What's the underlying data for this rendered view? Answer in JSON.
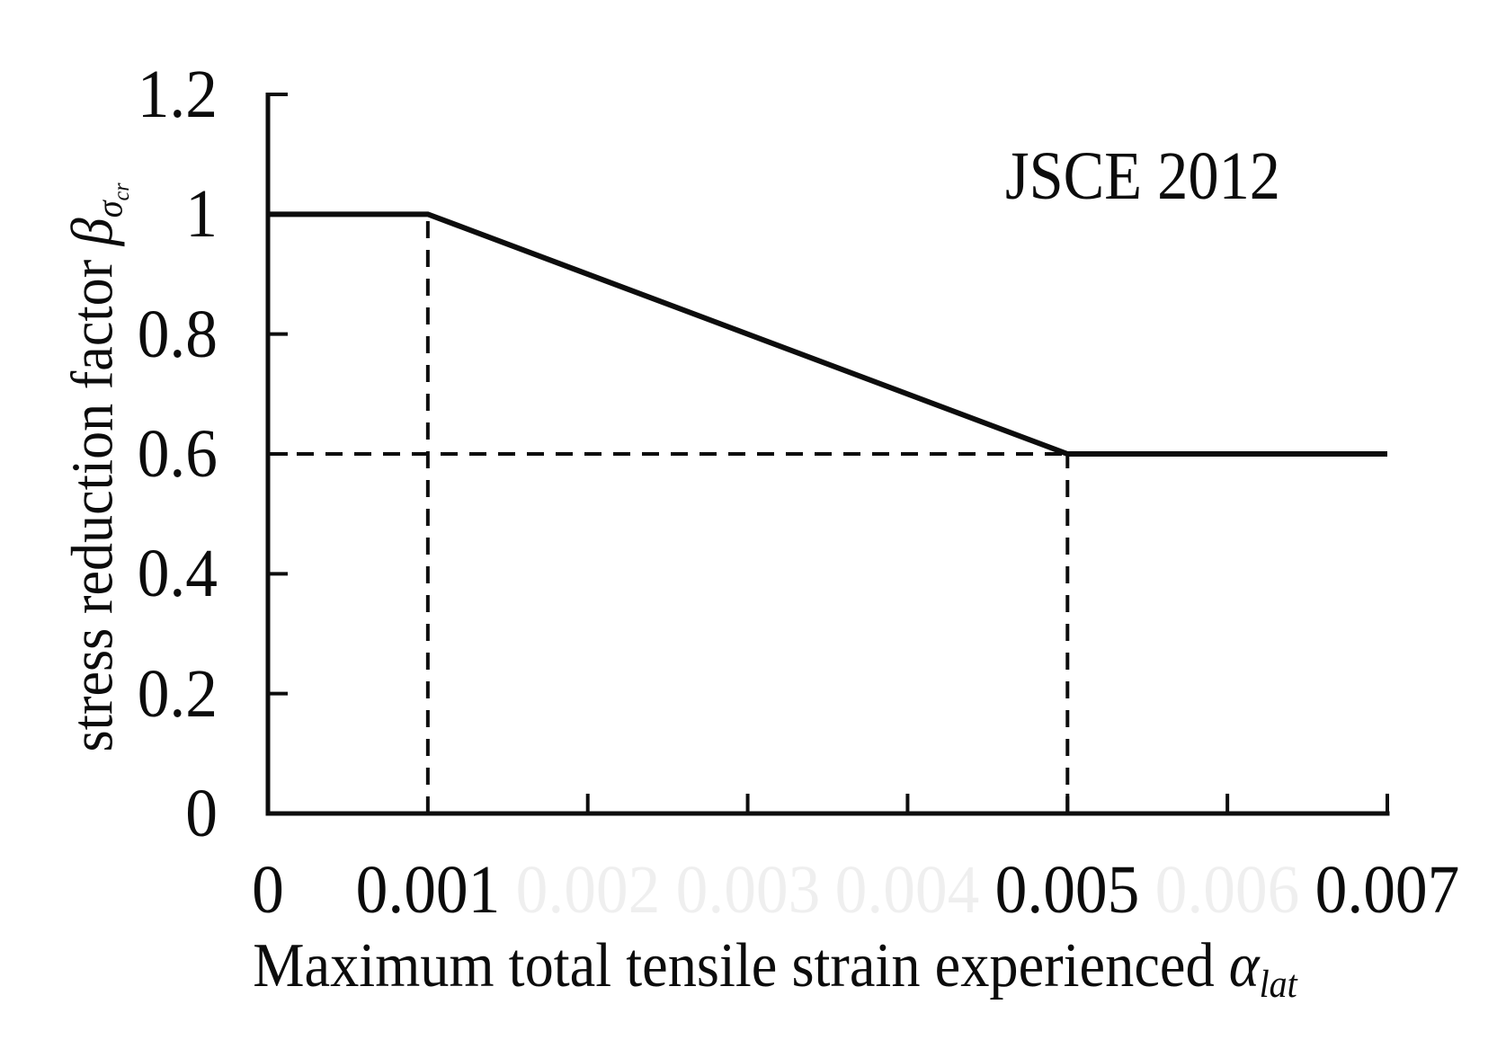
{
  "chart_data": {
    "type": "line",
    "title": "",
    "annotation": "JSCE 2012",
    "xlabel": "Maximum total tensile strain experienced α_lat",
    "xlabel_parts": {
      "main": "Maximum total tensile strain experienced ",
      "symbol": "α",
      "subscript": "lat"
    },
    "ylabel": "stress reduction factor β_σcr",
    "ylabel_parts": {
      "main": "stress reduction factor ",
      "symbol": "β",
      "subscript": "σ",
      "subsubscript": "cr"
    },
    "xlim": [
      0,
      0.007
    ],
    "ylim": [
      0,
      1.2
    ],
    "x_ticks_labeled": [
      0,
      0.001,
      0.005,
      0.007
    ],
    "x_tick_labels": [
      "0",
      "0.001",
      "0.005",
      "0.007"
    ],
    "x_ghost_tick_labels": [
      {
        "x": 0.002,
        "label": "0.002"
      },
      {
        "x": 0.003,
        "label": "0.003"
      },
      {
        "x": 0.004,
        "label": "0.004"
      },
      {
        "x": 0.006,
        "label": "0.006"
      }
    ],
    "x_minor_ticks": [
      0.002,
      0.003,
      0.004,
      0.005,
      0.006,
      0.007
    ],
    "y_ticks": [
      0,
      0.2,
      0.4,
      0.6,
      0.8,
      1,
      1.2
    ],
    "y_tick_labels": [
      "0",
      "0.2",
      "0.4",
      "0.6",
      "0.8",
      "1",
      "1.2"
    ],
    "series": [
      {
        "name": "JSCE 2012 stress reduction factor",
        "x": [
          0,
          0.001,
          0.005,
          0.007
        ],
        "y": [
          1,
          1,
          0.6,
          0.6
        ]
      }
    ],
    "reference_lines": {
      "vertical_dashed": [
        {
          "x": 0.001,
          "y0": 0,
          "y1": 1
        },
        {
          "x": 0.005,
          "y0": 0,
          "y1": 0.6
        }
      ],
      "horizontal_dashed": [
        {
          "y": 0.6,
          "x0": 0,
          "x1": 0.005
        }
      ]
    },
    "line_color": "#0d0d0d",
    "axis_color": "#0d0d0d",
    "background_color": "#ffffff",
    "grid": false,
    "legend_position": "none"
  }
}
